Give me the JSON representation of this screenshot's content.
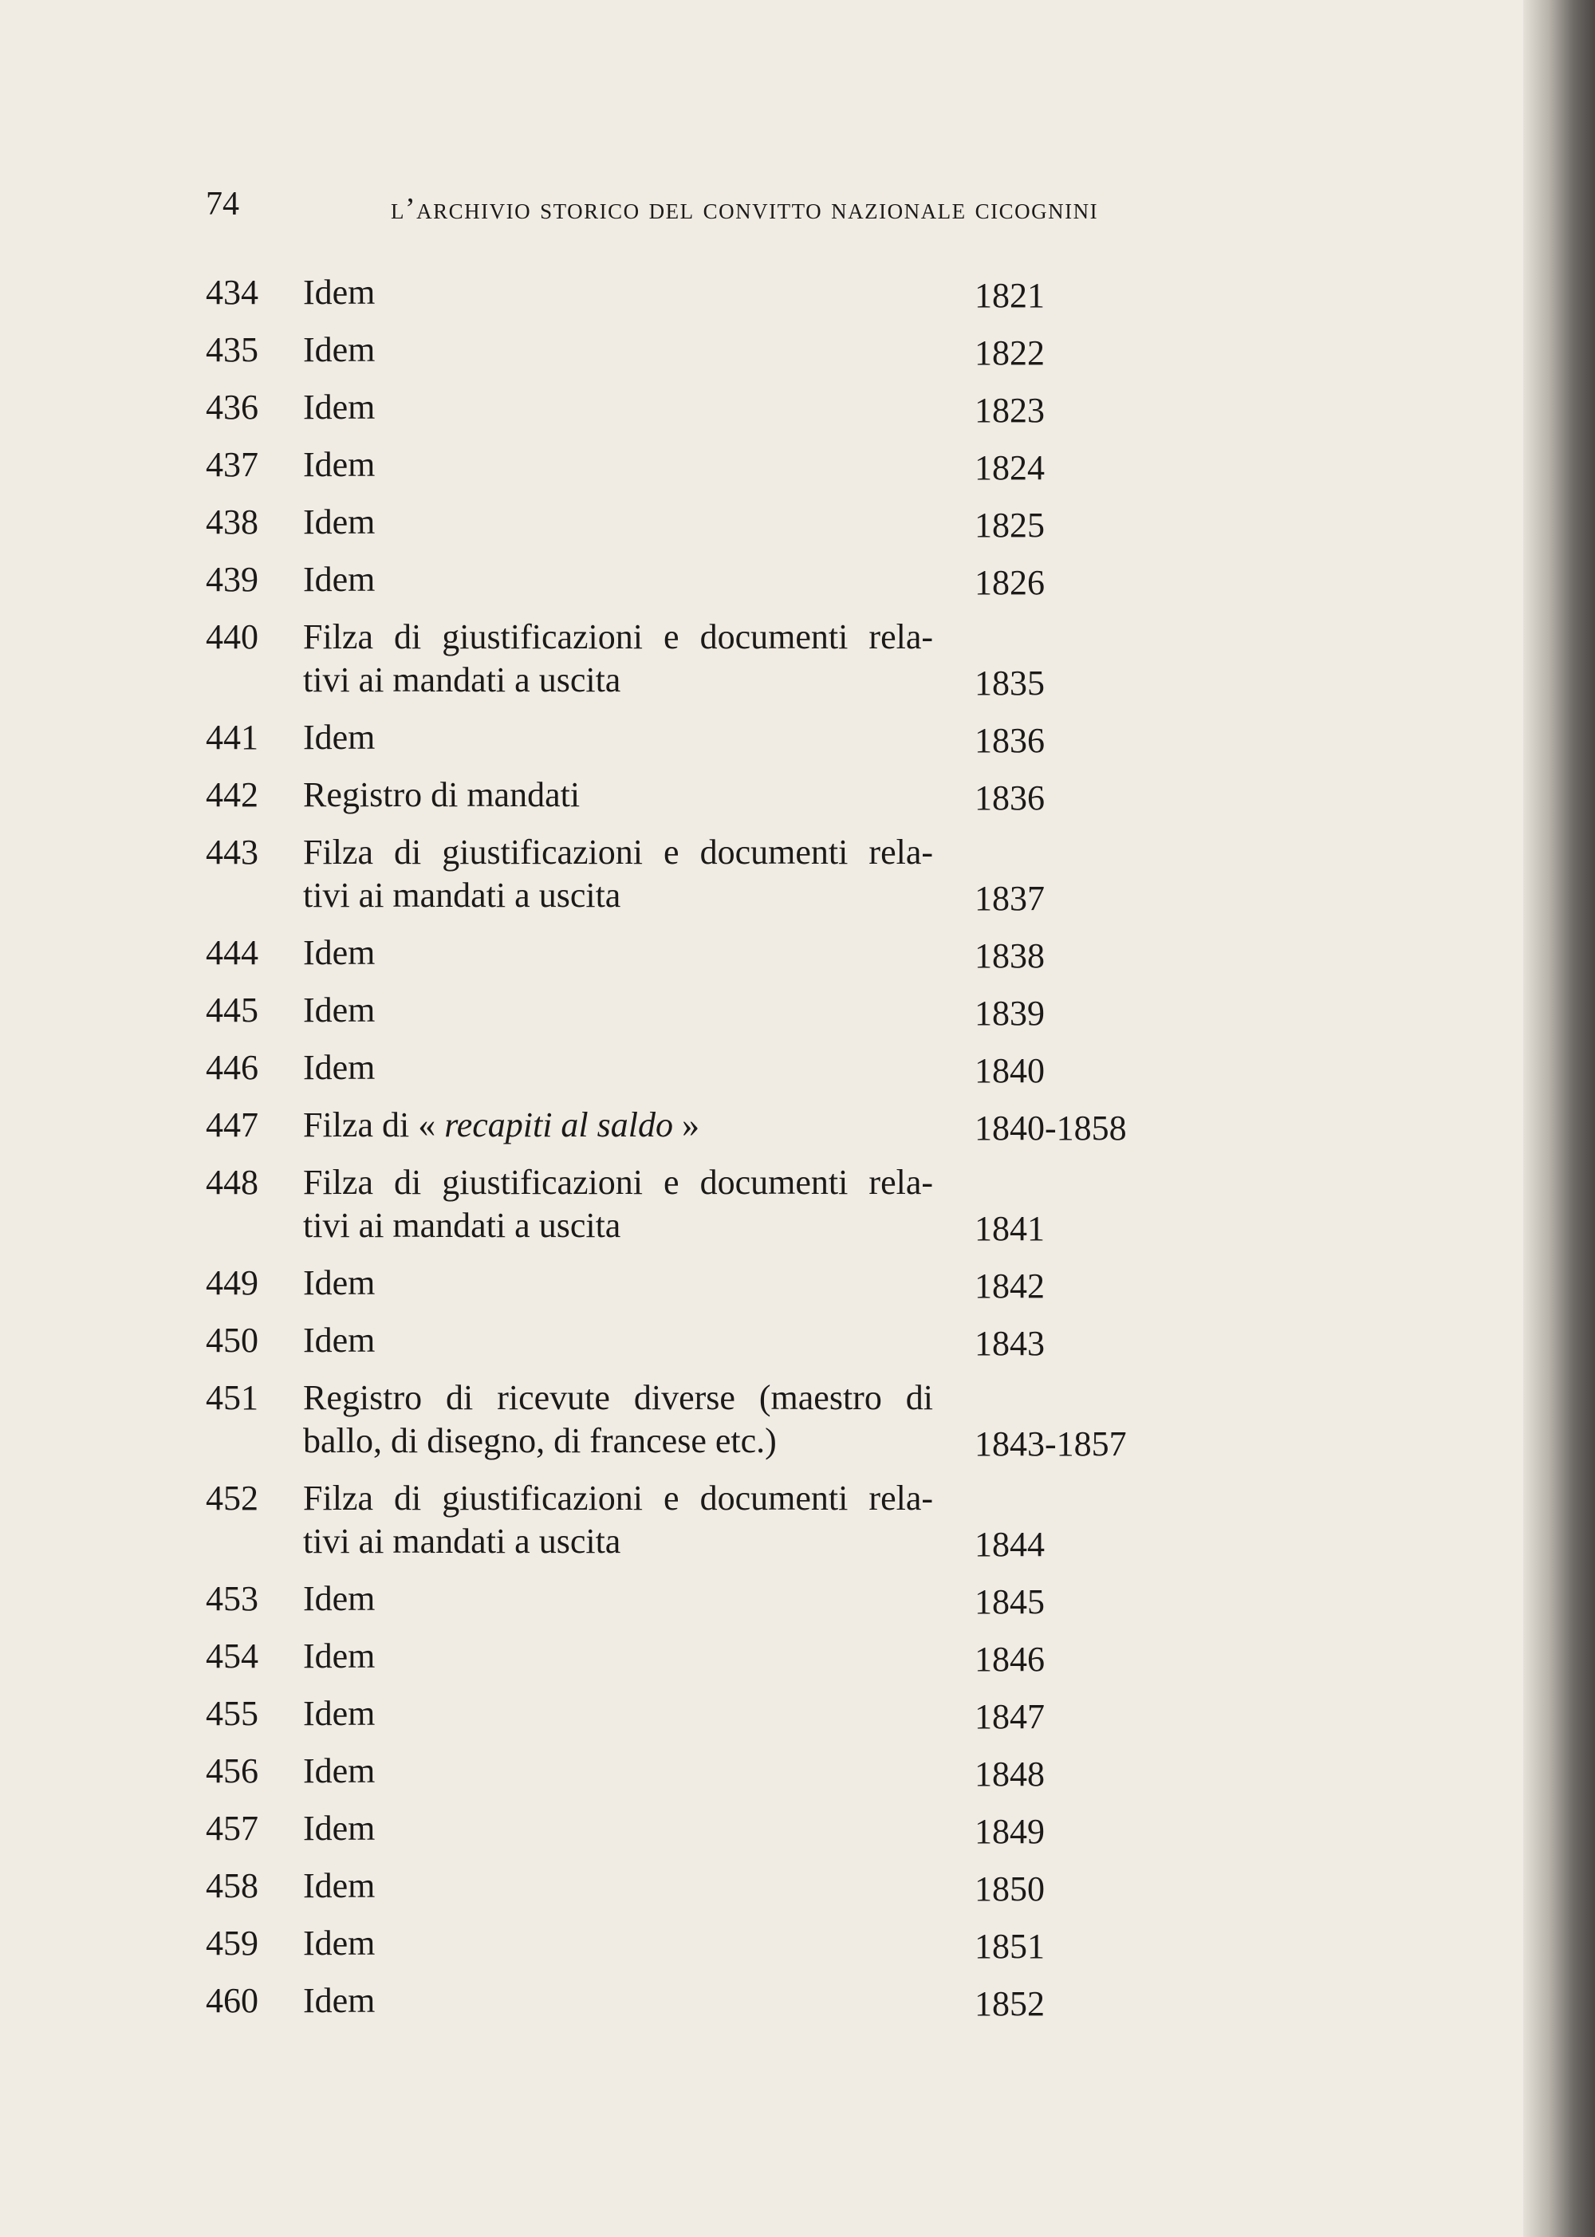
{
  "header": {
    "page_number": "74",
    "running_title": "l’archivio storico del convitto nazionale cicognini"
  },
  "entries": [
    {
      "number": "434",
      "lines": [
        [
          {
            "text": "Idem"
          }
        ]
      ],
      "date": "1821"
    },
    {
      "number": "435",
      "lines": [
        [
          {
            "text": "Idem"
          }
        ]
      ],
      "date": "1822"
    },
    {
      "number": "436",
      "lines": [
        [
          {
            "text": "Idem"
          }
        ]
      ],
      "date": "1823"
    },
    {
      "number": "437",
      "lines": [
        [
          {
            "text": "Idem"
          }
        ]
      ],
      "date": "1824"
    },
    {
      "number": "438",
      "lines": [
        [
          {
            "text": "Idem"
          }
        ]
      ],
      "date": "1825"
    },
    {
      "number": "439",
      "lines": [
        [
          {
            "text": "Idem"
          }
        ]
      ],
      "date": "1826"
    },
    {
      "number": "440",
      "lines": [
        [
          {
            "text": "Filza di giustificazioni e documenti rela-"
          }
        ],
        [
          {
            "text": "tivi ai mandati a uscita"
          }
        ]
      ],
      "date": "1835"
    },
    {
      "number": "441",
      "lines": [
        [
          {
            "text": "Idem"
          }
        ]
      ],
      "date": "1836"
    },
    {
      "number": "442",
      "lines": [
        [
          {
            "text": "Registro di mandati"
          }
        ]
      ],
      "date": "1836"
    },
    {
      "number": "443",
      "lines": [
        [
          {
            "text": "Filza di giustificazioni e documenti rela-"
          }
        ],
        [
          {
            "text": "tivi ai mandati a uscita"
          }
        ]
      ],
      "date": "1837"
    },
    {
      "number": "444",
      "lines": [
        [
          {
            "text": "Idem"
          }
        ]
      ],
      "date": "1838"
    },
    {
      "number": "445",
      "lines": [
        [
          {
            "text": "Idem"
          }
        ]
      ],
      "date": "1839"
    },
    {
      "number": "446",
      "lines": [
        [
          {
            "text": "Idem"
          }
        ]
      ],
      "date": "1840"
    },
    {
      "number": "447",
      "lines": [
        [
          {
            "text": "Filza di « "
          },
          {
            "text": "recapiti al saldo",
            "italic": true
          },
          {
            "text": " »"
          }
        ]
      ],
      "date": "1840-1858"
    },
    {
      "number": "448",
      "lines": [
        [
          {
            "text": "Filza di giustificazioni e documenti rela-"
          }
        ],
        [
          {
            "text": "tivi ai mandati a uscita"
          }
        ]
      ],
      "date": "1841"
    },
    {
      "number": "449",
      "lines": [
        [
          {
            "text": "Idem"
          }
        ]
      ],
      "date": "1842"
    },
    {
      "number": "450",
      "lines": [
        [
          {
            "text": "Idem"
          }
        ]
      ],
      "date": "1843"
    },
    {
      "number": "451",
      "lines": [
        [
          {
            "text": "Registro di ricevute diverse (maestro di"
          }
        ],
        [
          {
            "text": "ballo, di disegno, di francese etc.)"
          }
        ]
      ],
      "date": "1843-1857"
    },
    {
      "number": "452",
      "lines": [
        [
          {
            "text": "Filza di giustificazioni e documenti rela-"
          }
        ],
        [
          {
            "text": "tivi ai mandati a uscita"
          }
        ]
      ],
      "date": "1844"
    },
    {
      "number": "453",
      "lines": [
        [
          {
            "text": "Idem"
          }
        ]
      ],
      "date": "1845"
    },
    {
      "number": "454",
      "lines": [
        [
          {
            "text": "Idem"
          }
        ]
      ],
      "date": "1846"
    },
    {
      "number": "455",
      "lines": [
        [
          {
            "text": "Idem"
          }
        ]
      ],
      "date": "1847"
    },
    {
      "number": "456",
      "lines": [
        [
          {
            "text": "Idem"
          }
        ]
      ],
      "date": "1848"
    },
    {
      "number": "457",
      "lines": [
        [
          {
            "text": "Idem"
          }
        ]
      ],
      "date": "1849"
    },
    {
      "number": "458",
      "lines": [
        [
          {
            "text": "Idem"
          }
        ]
      ],
      "date": "1850"
    },
    {
      "number": "459",
      "lines": [
        [
          {
            "text": "Idem"
          }
        ]
      ],
      "date": "1851"
    },
    {
      "number": "460",
      "lines": [
        [
          {
            "text": "Idem"
          }
        ]
      ],
      "date": "1852"
    }
  ]
}
